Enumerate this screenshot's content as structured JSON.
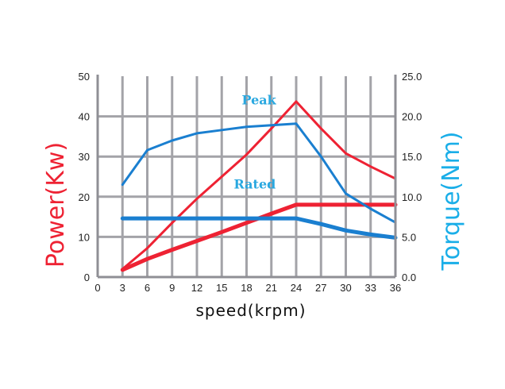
{
  "chart_data": {
    "type": "line",
    "xlabel": "speed(krpm)",
    "ylabel_left": "Power(Kw)",
    "ylabel_right": "Torque(Nm)",
    "x_ticks": [
      "0",
      "3",
      "6",
      "9",
      "12",
      "15",
      "18",
      "21",
      "24",
      "27",
      "30",
      "33",
      "36"
    ],
    "y_left_ticks": [
      "0",
      "10",
      "20",
      "30",
      "40",
      "50"
    ],
    "y_right_ticks": [
      "0.0",
      "5.0",
      "10.0",
      "15.0",
      "20.0",
      "25.0"
    ],
    "xlim": [
      0,
      36
    ],
    "ylim_left": [
      0,
      50
    ],
    "ylim_right": [
      0,
      25
    ],
    "grid": true,
    "annotations": [
      {
        "text": "Peak",
        "x": 19.5,
        "y": 43
      },
      {
        "text": "Rated",
        "x": 19,
        "y": 22
      }
    ],
    "series": [
      {
        "axis": "left",
        "color": "#ee2233",
        "stroke": "thin",
        "x": [
          3,
          6,
          9,
          12,
          15,
          18,
          21,
          24,
          27,
          30,
          33,
          36
        ],
        "y": [
          2,
          7.2,
          13.5,
          19.5,
          25,
          30.5,
          37,
          43.7,
          37,
          30.8,
          27.5,
          24.5
        ]
      },
      {
        "axis": "left",
        "color": "#ee2233",
        "stroke": "thick",
        "x": [
          3,
          6,
          9,
          12,
          15,
          18,
          21,
          24,
          27,
          30,
          33,
          36
        ],
        "y": [
          1.8,
          4.5,
          6.8,
          9,
          11.2,
          13.5,
          15.8,
          18,
          18,
          18,
          18,
          18
        ]
      },
      {
        "axis": "right",
        "color": "#1a7fd0",
        "stroke": "thin",
        "x": [
          3,
          6,
          9,
          12,
          15,
          18,
          21,
          24,
          27,
          30,
          33,
          36
        ],
        "y": [
          11.5,
          15.8,
          17,
          17.9,
          18.3,
          18.7,
          18.9,
          19.1,
          15,
          10.4,
          8.5,
          6.8
        ]
      },
      {
        "axis": "right",
        "color": "#1a7fd0",
        "stroke": "thick",
        "x": [
          3,
          6,
          9,
          12,
          15,
          18,
          21,
          24,
          27,
          30,
          33,
          36
        ],
        "y": [
          7.3,
          7.3,
          7.3,
          7.3,
          7.3,
          7.3,
          7.3,
          7.3,
          6.6,
          5.8,
          5.3,
          4.9
        ]
      }
    ]
  }
}
